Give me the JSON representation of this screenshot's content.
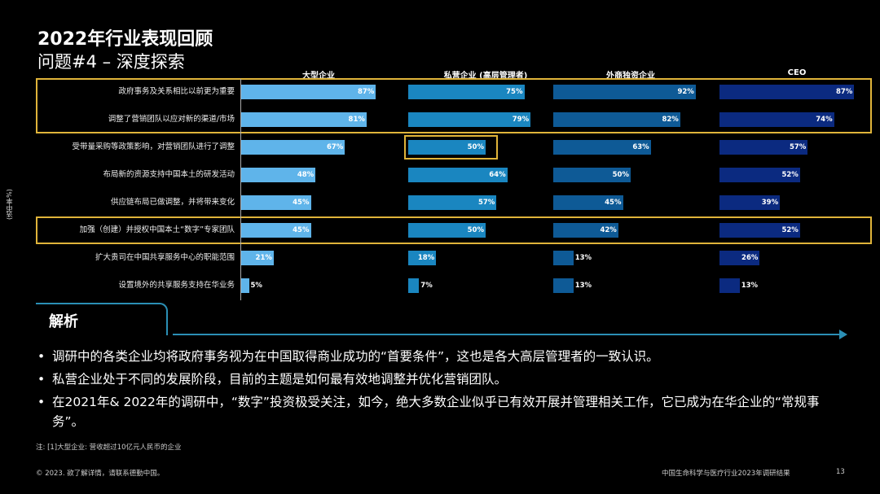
{
  "slide": {
    "title": "2022年行业表现回顾",
    "subtitle": "问题#4 – 深度探索",
    "ylabel": "(选中率%)"
  },
  "chart_data": {
    "type": "bar",
    "columns": [
      "大型企业",
      "私营企业 (高层管理者)",
      "外商独资企业",
      "CEO"
    ],
    "colors": [
      "#5fb4ea",
      "#1a86c0",
      "#0e5a96",
      "#0b2a80"
    ],
    "categories": [
      "政府事务及关系相比以前更为重要",
      "调整了营销团队以应对新的渠道/市场",
      "受带量采购等政策影响，对营销团队进行了调整",
      "布局新的资源支持中国本土的研发活动",
      "供应链布局已做调整，并将带来变化",
      "加强（创建）并授权中国本土“数字”专家团队",
      "扩大贵司在中国共享服务中心的职能范围",
      "设置境外的共享服务支持在华业务"
    ],
    "series": [
      {
        "name": "大型企业",
        "values": [
          87,
          81,
          67,
          48,
          45,
          45,
          21,
          5
        ]
      },
      {
        "name": "私营企业 (高层管理者)",
        "values": [
          75,
          79,
          50,
          64,
          57,
          50,
          18,
          7
        ]
      },
      {
        "name": "外商独资企业",
        "values": [
          92,
          82,
          63,
          50,
          45,
          42,
          13,
          13
        ]
      },
      {
        "name": "CEO",
        "values": [
          87,
          74,
          57,
          52,
          39,
          52,
          26,
          13
        ]
      }
    ],
    "value_suffix": "%",
    "xlim": [
      0,
      100
    ],
    "highlighted_rows": [
      [
        0,
        1
      ],
      [
        5,
        5
      ]
    ],
    "highlighted_cell": {
      "row": 2,
      "series": 1
    }
  },
  "analysis": {
    "title": "解析",
    "bullets": [
      "调研中的各类企业均将政府事务视为在中国取得商业成功的“首要条件”，这也是各大高层管理者的一致认识。",
      "私营企业处于不同的发展阶段，目前的主题是如何最有效地调整并优化营销团队。",
      "在2021年& 2022年的调研中，“数字”投资极受关注，如今，绝大多数企业似乎已有效开展并管理相关工作，它已成为在华企业的“常规事务”。"
    ]
  },
  "footer": {
    "note": "注: [1]大型企业: 营收超过10亿元人民币的企业",
    "copyright": "© 2023. 欲了解详情，请联系德勤中国。",
    "report": "中国生命科学与医疗行业2023年调研结果",
    "page": "13"
  }
}
